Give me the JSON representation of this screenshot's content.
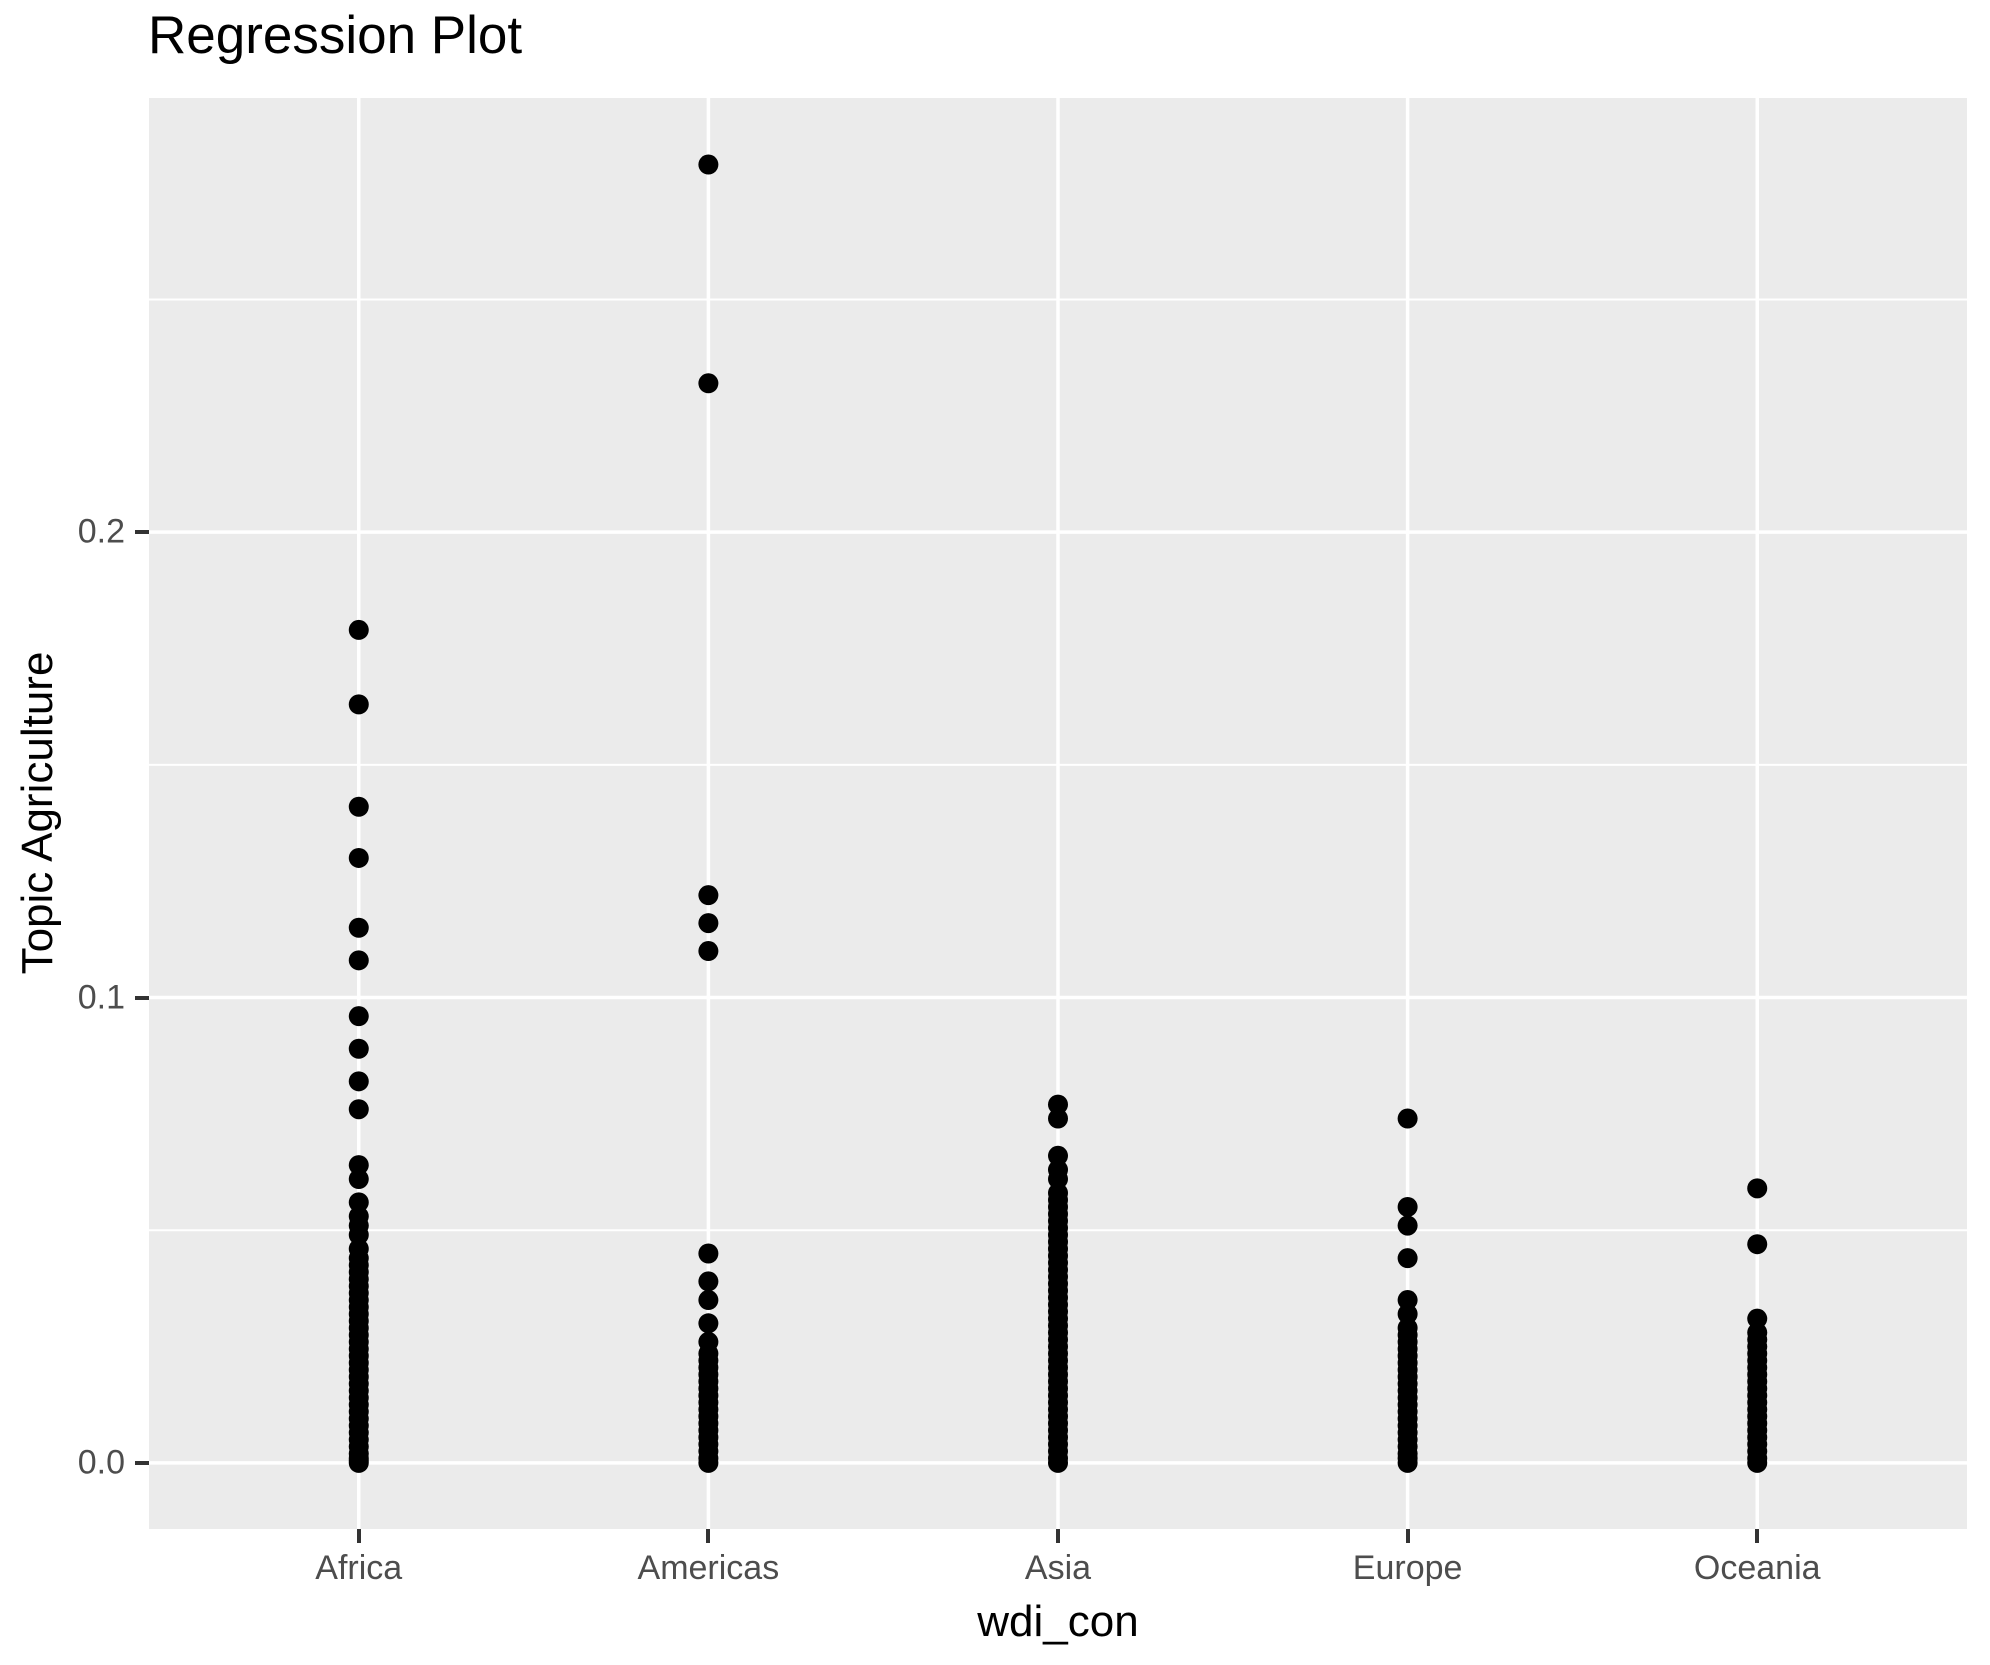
{
  "colors": {
    "panel_bg": "#EBEBEB",
    "grid": "#FFFFFF",
    "point": "#000000",
    "axis_text": "#4D4D4D",
    "tick_mark": "#333333",
    "title_text": "#000000"
  },
  "chart_data": {
    "type": "scatter",
    "subtype": "categorical-strip",
    "title": "Regression Plot",
    "xlabel": "wdi_con",
    "ylabel": "Topic Agriculture",
    "categories": [
      "Africa",
      "Americas",
      "Asia",
      "Europe",
      "Oceania"
    ],
    "y_ticks": {
      "values": [
        0.0,
        0.1,
        0.2
      ],
      "labels": [
        "0.0",
        "0.1",
        "0.2"
      ]
    },
    "y_minor_ticks": [
      0.05,
      0.15,
      0.25
    ],
    "ylim": [
      -0.0142,
      0.2933
    ],
    "grid": true,
    "legend": "none",
    "point_radius_px": 10,
    "series": [
      {
        "name": "Africa",
        "values": [
          0.179,
          0.163,
          0.141,
          0.13,
          0.115,
          0.108,
          0.096,
          0.089,
          0.082,
          0.076,
          0.064,
          0.061,
          0.056,
          0.053,
          0.051,
          0.049,
          0.046,
          0.044,
          0.0425,
          0.041,
          0.0395,
          0.038,
          0.0365,
          0.035,
          0.0335,
          0.032,
          0.0305,
          0.029,
          0.0275,
          0.026,
          0.0245,
          0.023,
          0.0215,
          0.02,
          0.0185,
          0.017,
          0.0155,
          0.014,
          0.0125,
          0.011,
          0.0095,
          0.008,
          0.0065,
          0.005,
          0.0035,
          0.002,
          0.001,
          0.0005,
          0.0
        ]
      },
      {
        "name": "Americas",
        "values": [
          0.279,
          0.232,
          0.122,
          0.116,
          0.11,
          0.045,
          0.039,
          0.035,
          0.03,
          0.026,
          0.0235,
          0.022,
          0.0205,
          0.019,
          0.0175,
          0.016,
          0.0145,
          0.013,
          0.0115,
          0.01,
          0.0085,
          0.007,
          0.0055,
          0.004,
          0.0025,
          0.001,
          0.0
        ]
      },
      {
        "name": "Asia",
        "values": [
          0.077,
          0.074,
          0.066,
          0.063,
          0.061,
          0.058,
          0.0565,
          0.055,
          0.0535,
          0.052,
          0.0505,
          0.049,
          0.0475,
          0.046,
          0.0445,
          0.043,
          0.0415,
          0.04,
          0.0385,
          0.037,
          0.0355,
          0.034,
          0.0325,
          0.031,
          0.0295,
          0.028,
          0.0265,
          0.025,
          0.0235,
          0.022,
          0.0205,
          0.019,
          0.0175,
          0.016,
          0.0145,
          0.013,
          0.0115,
          0.01,
          0.0085,
          0.007,
          0.0055,
          0.004,
          0.0025,
          0.001,
          0.0
        ]
      },
      {
        "name": "Europe",
        "values": [
          0.074,
          0.055,
          0.051,
          0.044,
          0.035,
          0.032,
          0.029,
          0.0275,
          0.026,
          0.0245,
          0.023,
          0.0215,
          0.02,
          0.0185,
          0.017,
          0.0155,
          0.014,
          0.0125,
          0.011,
          0.0095,
          0.008,
          0.0065,
          0.005,
          0.0035,
          0.002,
          0.001,
          0.0
        ]
      },
      {
        "name": "Oceania",
        "values": [
          0.059,
          0.047,
          0.031,
          0.028,
          0.0265,
          0.025,
          0.0235,
          0.022,
          0.0205,
          0.019,
          0.0175,
          0.016,
          0.0145,
          0.013,
          0.0115,
          0.01,
          0.0085,
          0.007,
          0.0055,
          0.004,
          0.0025,
          0.001,
          0.0
        ]
      }
    ]
  }
}
